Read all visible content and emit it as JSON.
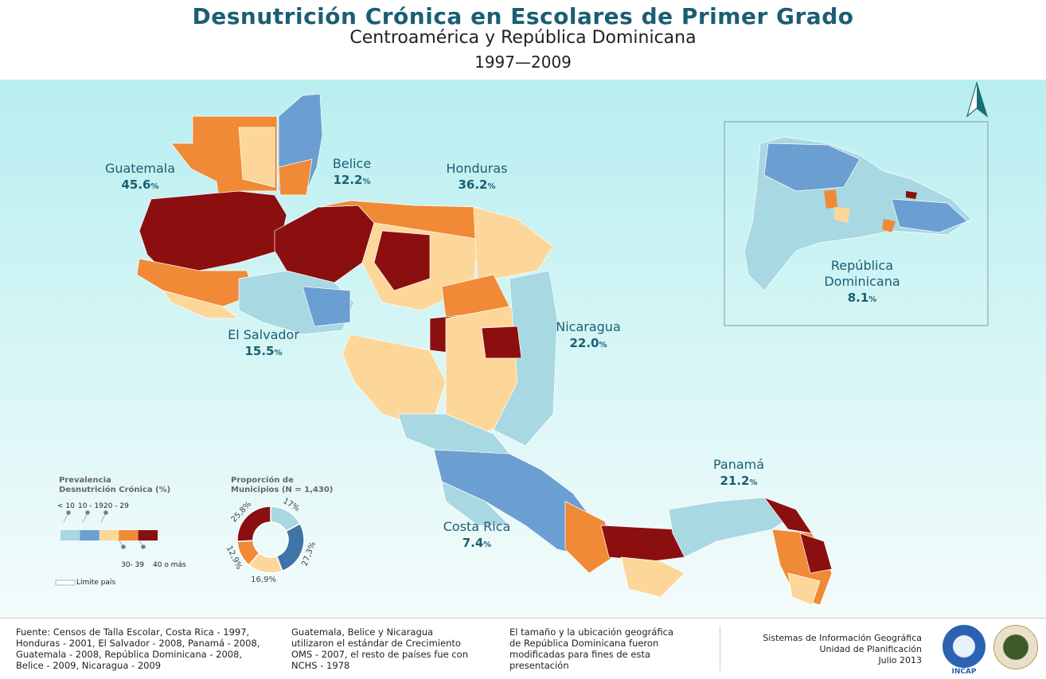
{
  "header": {
    "title": "Desnutrición Crónica en Escolares de Primer Grado",
    "subtitle": "Centroamérica y República Dominicana",
    "years": "1997—2009"
  },
  "countries": [
    {
      "name": "Guatemala",
      "value": "45.6",
      "unit": "%"
    },
    {
      "name": "Belice",
      "value": "12.2",
      "unit": "%"
    },
    {
      "name": "Honduras",
      "value": "36.2",
      "unit": "%"
    },
    {
      "name": "El Salvador",
      "value": "15.5",
      "unit": "%"
    },
    {
      "name": "Nicaragua",
      "value": "22.0",
      "unit": "%"
    },
    {
      "name": "Costa Rica",
      "value": "7.4",
      "unit": "%"
    },
    {
      "name": "Panamá",
      "value": "21.2",
      "unit": "%"
    },
    {
      "name": "República Dominicana",
      "value": "8.1",
      "unit": "%"
    }
  ],
  "legend": {
    "title_line1": "Prevalencia",
    "title_line2": "Desnutrición Crónica (%)",
    "classes": [
      {
        "label": "< 10",
        "color": "#a8d8e2"
      },
      {
        "label": "10 - 19",
        "color": "#6b9fd2"
      },
      {
        "label": "20 - 29",
        "color": "#fdd79a"
      },
      {
        "label": "30- 39",
        "color": "#f08a36"
      },
      {
        "label": "40 o más",
        "color": "#8b0f0f"
      }
    ],
    "boundary_label": "Límite país"
  },
  "donut": {
    "title_line1": "Proporción de",
    "title_line2": "Municipios (N = 1,430)",
    "segments": [
      {
        "label": "17%",
        "value": 17.0,
        "color": "#a8d8e2"
      },
      {
        "label": "27,3%",
        "value": 27.3,
        "color": "#3f74a8"
      },
      {
        "label": "16,9%",
        "value": 16.9,
        "color": "#fdd79a"
      },
      {
        "label": "12,9%",
        "value": 12.9,
        "color": "#f08a36"
      },
      {
        "label": "25,8%",
        "value": 25.8,
        "color": "#8b0f0f"
      }
    ]
  },
  "footer": {
    "source_l1": "Fuente: Censos de Talla Escolar, Costa Rica - 1997,",
    "source_l2": "Honduras - 2001, El Salvador - 2008, Panamá - 2008,",
    "source_l3": "Guatemala - 2008, República Dominicana - 2008,",
    "source_l4": "Belice - 2009, Nicaragua - 2009",
    "std_l1": "Guatemala,     Belice     y     Nicaragua",
    "std_l2": "utilizaron el estándar de Crecimiento",
    "std_l3": "OMS - 2007, el resto de países fue con",
    "std_l4": "NCHS - 1978",
    "note_l1": "El tamaño y la ubicación geográfica",
    "note_l2": "de República Dominicana fueron",
    "note_l3": "modificadas para fines de esta",
    "note_l4": "presentación",
    "org_l1": "Sistemas de Información Geográfica",
    "org_l2": "Unidad de Planificación",
    "org_l3": "Julio 2013",
    "logo_text": "INCAP"
  }
}
